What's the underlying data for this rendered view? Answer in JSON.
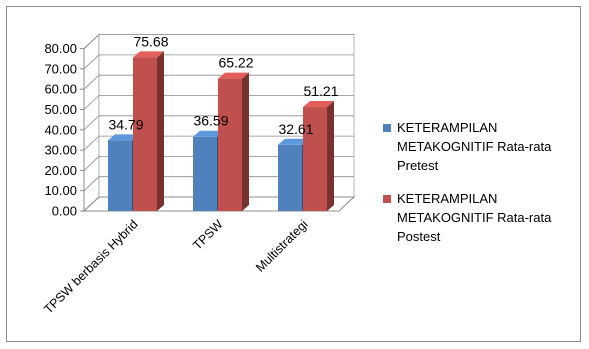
{
  "chart_data": {
    "type": "bar",
    "categories": [
      "TPSW berbasis Hybrid",
      "TPSW",
      "Multistrategi"
    ],
    "series": [
      {
        "name": "KETERAMPILAN METAKOGNITIF Rata-rata Pretest",
        "values": [
          34.79,
          36.59,
          32.61
        ],
        "labels": [
          "34.79",
          "36.59",
          "32.61"
        ],
        "color": "#4f81bd"
      },
      {
        "name": "KETERAMPILAN METAKOGNITIF Rata-rata Postest",
        "values": [
          75.68,
          65.22,
          51.21
        ],
        "labels": [
          "75.68",
          "65.22",
          "51.21"
        ],
        "color": "#c0504d"
      }
    ],
    "yticks": [
      "0.00",
      "10.00",
      "20.00",
      "30.00",
      "40.00",
      "50.00",
      "60.00",
      "70.00",
      "80.00"
    ],
    "ylim": [
      0,
      80
    ],
    "title": "",
    "xlabel": "",
    "ylabel": "",
    "grid": true,
    "legend_position": "right",
    "style": "3d-clustered"
  }
}
